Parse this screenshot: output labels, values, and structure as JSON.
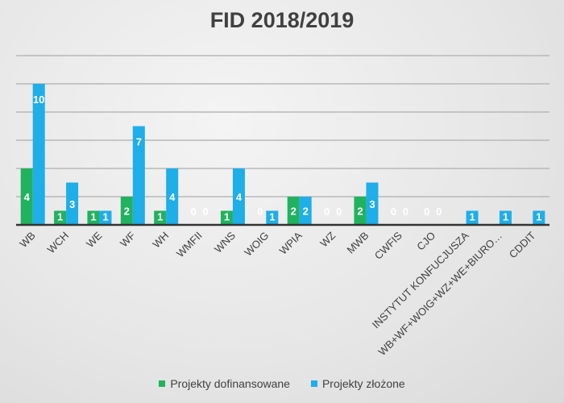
{
  "chart_data": {
    "type": "bar",
    "title": "FID 2018/2019",
    "categories": [
      "WB",
      "WCH",
      "WE",
      "WF",
      "WH",
      "WMFII",
      "WNS",
      "WOIG",
      "WPIA",
      "WZ",
      "MWB",
      "CWFIS",
      "CJO",
      "INSTYTUT KONFUCJUSZA",
      "WB+WF+WOIG+WZ+WE+BIURO…",
      "CDDIT"
    ],
    "series": [
      {
        "name": "Projekty dofinansowane",
        "color": "#21b25e",
        "values": [
          4,
          1,
          1,
          2,
          1,
          0,
          1,
          0,
          2,
          0,
          2,
          0,
          0,
          null,
          null,
          null
        ]
      },
      {
        "name": "Projekty złożone",
        "color": "#1eaee8",
        "values": [
          10,
          3,
          1,
          7,
          4,
          0,
          4,
          1,
          2,
          0,
          3,
          0,
          0,
          1,
          1,
          1
        ]
      }
    ],
    "ylim": [
      0,
      12
    ],
    "grid": true,
    "legend": "bottom",
    "xlabel": "",
    "ylabel": ""
  }
}
